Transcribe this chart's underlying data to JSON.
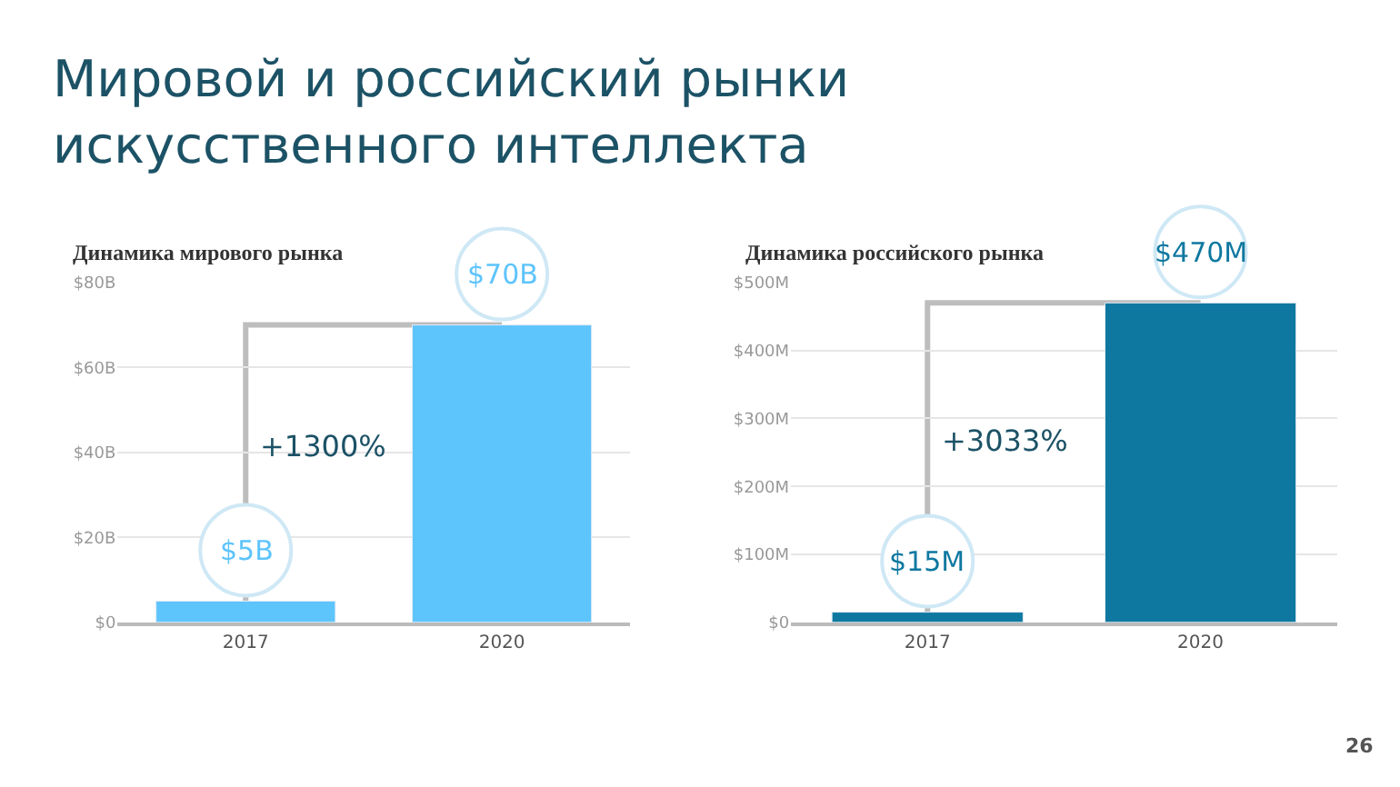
{
  "chart_data": [
    {
      "type": "bar",
      "title": "Мировой и российский рынки искусственного интеллекта",
      "subtitle": "Динамика мирового рынка",
      "categories": [
        "2017",
        "2020"
      ],
      "values": [
        5,
        70
      ],
      "value_labels": [
        "$5B",
        "$70B"
      ],
      "color": "#5ec4fc",
      "ylim": [
        0,
        80
      ],
      "yticks": [
        {
          "value": 0,
          "label": "$0"
        },
        {
          "value": 20,
          "label": "$20B"
        },
        {
          "value": 40,
          "label": "$40B"
        },
        {
          "value": 60,
          "label": "$60B"
        },
        {
          "value": 80,
          "label": "$80B"
        }
      ],
      "grid": "y",
      "annotations": [
        "+1300%"
      ]
    },
    {
      "type": "bar",
      "title": "Динамика российского рынка",
      "categories": [
        "2017",
        "2020"
      ],
      "values": [
        15,
        470
      ],
      "value_labels": [
        "$15M",
        "$470M"
      ],
      "color": "#0f78a0",
      "ylim": [
        0,
        500
      ],
      "yticks": [
        {
          "value": 0,
          "label": "$0"
        },
        {
          "value": 100,
          "label": "$100M"
        },
        {
          "value": 200,
          "label": "$200M"
        },
        {
          "value": 300,
          "label": "$300M"
        },
        {
          "value": 400,
          "label": "$400M"
        },
        {
          "value": 500,
          "label": "$500M"
        }
      ],
      "grid": "y",
      "annotations": [
        "+3033%",
        "26"
      ]
    }
  ]
}
